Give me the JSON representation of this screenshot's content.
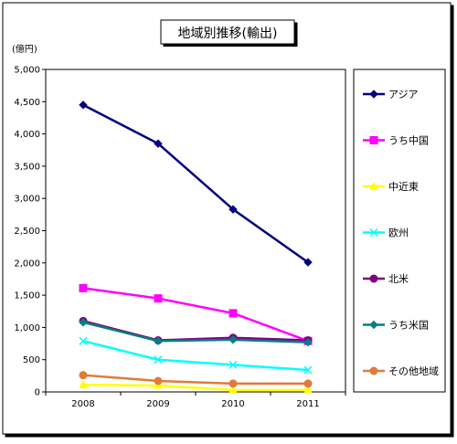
{
  "chart_data": {
    "type": "line",
    "title": "地域別推移(輸出)",
    "unit_label": "(億円)",
    "xlabel": "",
    "ylabel": "",
    "categories": [
      "2008",
      "2009",
      "2010",
      "2011"
    ],
    "ylim": [
      0,
      5000
    ],
    "yticks": [
      0,
      500,
      1000,
      1500,
      2000,
      2500,
      3000,
      3500,
      4000,
      4500,
      5000
    ],
    "ytick_labels": [
      "0",
      "500",
      "1,000",
      "1,500",
      "2,000",
      "2,500",
      "3,000",
      "3,500",
      "4,000",
      "4,500",
      "5,000"
    ],
    "grid": false,
    "legend_position": "right",
    "series": [
      {
        "name": "アジア",
        "values": [
          4450,
          3850,
          2830,
          2010
        ],
        "color": "#00007f",
        "marker": "diamond"
      },
      {
        "name": "うち中国",
        "values": [
          1610,
          1450,
          1220,
          790
        ],
        "color": "#ff00ff",
        "marker": "square"
      },
      {
        "name": "中近東",
        "values": [
          110,
          100,
          30,
          30
        ],
        "color": "#ffff00",
        "marker": "triangle"
      },
      {
        "name": "欧州",
        "values": [
          790,
          500,
          420,
          340
        ],
        "color": "#00ffff",
        "marker": "x"
      },
      {
        "name": "北米",
        "values": [
          1100,
          800,
          840,
          800
        ],
        "color": "#7f007f",
        "marker": "circle"
      },
      {
        "name": "うち米国",
        "values": [
          1080,
          790,
          810,
          770
        ],
        "color": "#008080",
        "marker": "diamond"
      },
      {
        "name": "その他地域",
        "values": [
          260,
          170,
          130,
          130
        ],
        "color": "#e07b39",
        "marker": "circle"
      }
    ]
  }
}
